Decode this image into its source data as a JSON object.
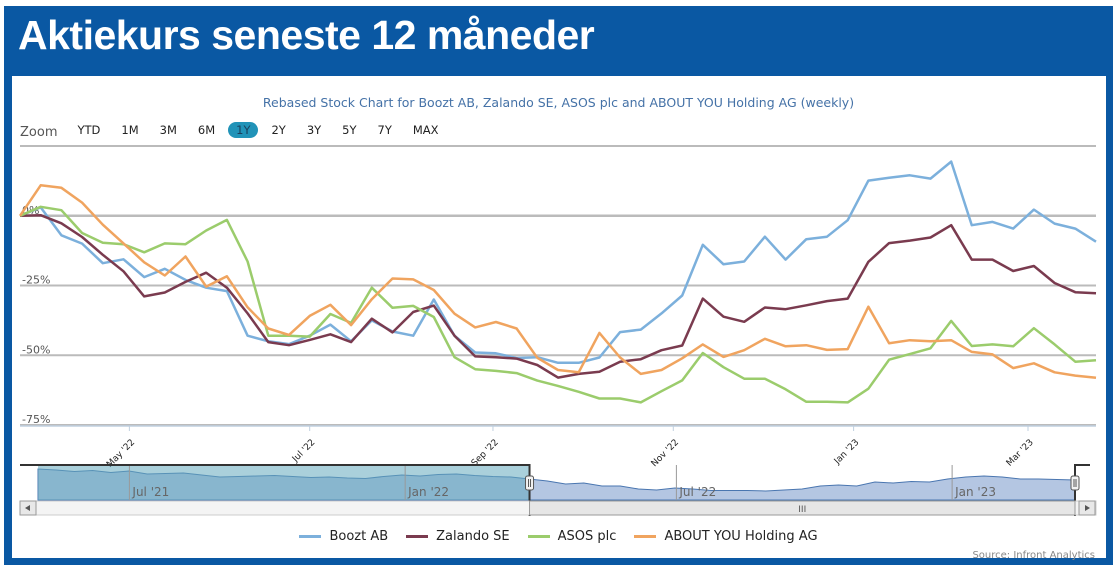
{
  "header": {
    "title": "Aktiekurs seneste 12 måneder"
  },
  "zoom": {
    "label": "Zoom",
    "buttons": [
      "YTD",
      "1M",
      "3M",
      "6M",
      "1Y",
      "2Y",
      "3Y",
      "5Y",
      "7Y",
      "MAX"
    ],
    "active": "1Y"
  },
  "source": "Source: Infront Analytics",
  "colors": {
    "brand": "#0a58a3",
    "selector_active": "#2193b8"
  },
  "chart_data": {
    "type": "line",
    "title": "Rebased Stock Chart for Boozt AB, Zalando SE, ASOS plc and ABOUT YOU Holding AG (weekly)",
    "x_start": "2022-03-25",
    "x_step": "weekly",
    "ylim": [
      -75,
      25
    ],
    "yticks": [
      25,
      0,
      -25,
      -50,
      -75
    ],
    "ytick_labels": {
      "0": "0%",
      "-25": "-25%",
      "-50": "-50%",
      "-75": "-75%"
    },
    "xticks": [
      {
        "date": "2022-05-01",
        "label": "May '22"
      },
      {
        "date": "2022-07-01",
        "label": "Jul '22"
      },
      {
        "date": "2022-09-01",
        "label": "Sep '22"
      },
      {
        "date": "2022-11-01",
        "label": "Nov '22"
      },
      {
        "date": "2023-01-01",
        "label": "Jan '23"
      },
      {
        "date": "2023-03-01",
        "label": "Mar '23"
      }
    ],
    "grid": true,
    "legend": "bottom",
    "series": [
      {
        "name": "Boozt AB",
        "color": "#7cb0dc",
        "values": [
          0,
          3,
          -7,
          -10,
          -17,
          -15.6,
          -22,
          -19,
          -23,
          -25.8,
          -27,
          -43,
          -45,
          -46,
          -43,
          -39,
          -45,
          -37.5,
          -41.5,
          -43,
          -30,
          -43,
          -49,
          -49.3,
          -51,
          -50.7,
          -52.7,
          -52.7,
          -50.8,
          -41.7,
          -40.8,
          -35,
          -28.6,
          -10.4,
          -17.4,
          -16.4,
          -7.5,
          -15.7,
          -8.4,
          -7.5,
          -1.6,
          12.6,
          13.6,
          14.5,
          13.3,
          19.4,
          -3.4,
          -2.2,
          -4.6,
          2.2,
          -2.8,
          -4.6,
          -9.3
        ]
      },
      {
        "name": "Zalando SE",
        "color": "#7a3b4f",
        "values": [
          0,
          0.2,
          -2.7,
          -7.6,
          -14,
          -19.9,
          -28.9,
          -27.5,
          -23.7,
          -20.4,
          -25.8,
          -35,
          -45.3,
          -46.4,
          -44.5,
          -42.5,
          -45.3,
          -36.9,
          -41.8,
          -34.5,
          -32.2,
          -43,
          -50.4,
          -50.7,
          -51.2,
          -53.5,
          -58,
          -56.7,
          -55.9,
          -52.3,
          -51.4,
          -48.2,
          -46.5,
          -29.7,
          -36.2,
          -38,
          -32.9,
          -33.5,
          -32.1,
          -30.6,
          -29.7,
          -16.5,
          -9.8,
          -8.9,
          -7.8,
          -3.4,
          -15.7,
          -15.7,
          -19.8,
          -18,
          -24.1,
          -27.4,
          -27.8
        ]
      },
      {
        "name": "ASOS plc",
        "color": "#9bcc6c",
        "values": [
          0,
          3.2,
          2,
          -6.2,
          -9.7,
          -10.2,
          -13.1,
          -9.9,
          -10.2,
          -5.3,
          -1.5,
          -16.4,
          -43,
          -43,
          -43.3,
          -35.2,
          -38.4,
          -25.8,
          -33,
          -32.3,
          -36.3,
          -50.7,
          -55,
          -55.6,
          -56.4,
          -59.1,
          -61,
          -63.1,
          -65.5,
          -65.5,
          -66.9,
          -62.9,
          -59,
          -49.2,
          -54.3,
          -58.4,
          -58.4,
          -62.2,
          -66.7,
          -66.7,
          -66.9,
          -62,
          -51.6,
          -49.6,
          -47.5,
          -37.7,
          -46.7,
          -46.1,
          -46.8,
          -40.3,
          -46.1,
          -52.3,
          -51.8
        ]
      },
      {
        "name": "ABOUT YOU Holding AG",
        "color": "#f0a45f",
        "values": [
          0,
          10.9,
          10,
          4.7,
          -3.2,
          -9.9,
          -16.7,
          -21.4,
          -14.6,
          -25.4,
          -21.7,
          -32.8,
          -40.4,
          -42.7,
          -35.9,
          -31.9,
          -39.2,
          -29.9,
          -22.5,
          -22.8,
          -26.6,
          -35.1,
          -40,
          -38.1,
          -40.4,
          -50.9,
          -55.3,
          -56.1,
          -42,
          -50.8,
          -56.7,
          -55.3,
          -51.1,
          -46.1,
          -50.6,
          -48.2,
          -44.1,
          -46.8,
          -46.4,
          -48.1,
          -47.8,
          -32.6,
          -45.7,
          -44.6,
          -45,
          -44.6,
          -48.8,
          -49.7,
          -54.6,
          -52.9,
          -56.1,
          -57.3,
          -58.1
        ]
      }
    ],
    "navigator": {
      "range_start": "2021-05-01",
      "range_end": "2023-03-24",
      "labels": [
        "Jul '21",
        "Jan '22",
        "Jul '22",
        "Jan '23"
      ],
      "label_dates": [
        "2021-07-01",
        "2022-01-01",
        "2022-07-01",
        "2023-01-01"
      ],
      "selected_start": "2022-03-25",
      "selected_end": "2023-03-24",
      "values": [
        100,
        98,
        95,
        97,
        93,
        96,
        90,
        91,
        92,
        88,
        84,
        85,
        86,
        87,
        85,
        83,
        84,
        82,
        81,
        85,
        88,
        86,
        89,
        90,
        87,
        85,
        84,
        80,
        76,
        70,
        72,
        66,
        66,
        60,
        58,
        62,
        60,
        57,
        57,
        57,
        56,
        58,
        60,
        66,
        68,
        66,
        74,
        72,
        75,
        74,
        80,
        84,
        86,
        84,
        80,
        80,
        79,
        78
      ]
    },
    "scrollbar_grip": "III"
  }
}
